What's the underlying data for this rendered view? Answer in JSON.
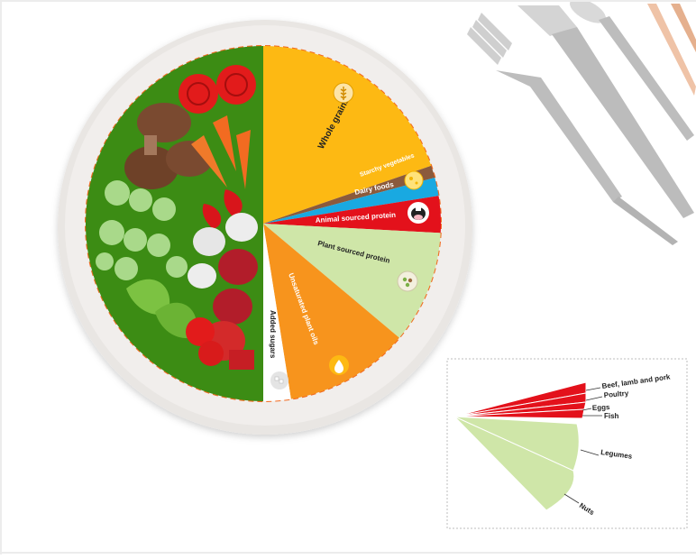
{
  "plate": {
    "sections": [
      {
        "key": "whole_grains",
        "label": "Whole grains",
        "color": "#FDB913",
        "text_color": "#222222",
        "icon": "wheat-icon"
      },
      {
        "key": "starchy_vegetables",
        "label": "Starchy vegetables",
        "color": "#8B5A3C",
        "text_color": "#ffffff",
        "icon": null
      },
      {
        "key": "dairy_foods",
        "label": "Dairy foods",
        "color": "#19A9E1",
        "text_color": "#ffffff",
        "icon": "cheese-icon"
      },
      {
        "key": "animal_sourced_protein",
        "label": "Animal sourced protein",
        "color": "#E3111B",
        "text_color": "#ffffff",
        "icon": "cow-icon"
      },
      {
        "key": "plant_sourced_protein",
        "label": "Plant sourced protein",
        "color": "#CFE6A8",
        "text_color": "#222222",
        "icon": "beans-icon"
      },
      {
        "key": "unsaturated_plant_oils",
        "label": "Unsaturated plant oils",
        "color": "#F7941D",
        "text_color": "#ffffff",
        "icon": "oil-drop-icon"
      },
      {
        "key": "added_sugars",
        "label": "Added sugars",
        "color": "#ffffff",
        "text_color": "#222222",
        "icon": "sugar-icon"
      }
    ],
    "vegetables_half_color": "#3C8C14",
    "dash_color": "#F26B21"
  },
  "protein_breakdown": {
    "items": [
      {
        "label": "Beef, lamb and pork",
        "color": "#E3111B"
      },
      {
        "label": "Poultry",
        "color": "#E3111B"
      },
      {
        "label": "Eggs",
        "color": "#E3111B"
      },
      {
        "label": "Fish",
        "color": "#E3111B"
      },
      {
        "label": "Legumes",
        "color": "#CFE6A8"
      },
      {
        "label": "Nuts",
        "color": "#CFE6A8"
      }
    ]
  },
  "cutlery": {
    "fork_color": "#B9B9B9",
    "knife_color": "#B9B9B9",
    "chopsticks_color": "#E9B89A"
  }
}
